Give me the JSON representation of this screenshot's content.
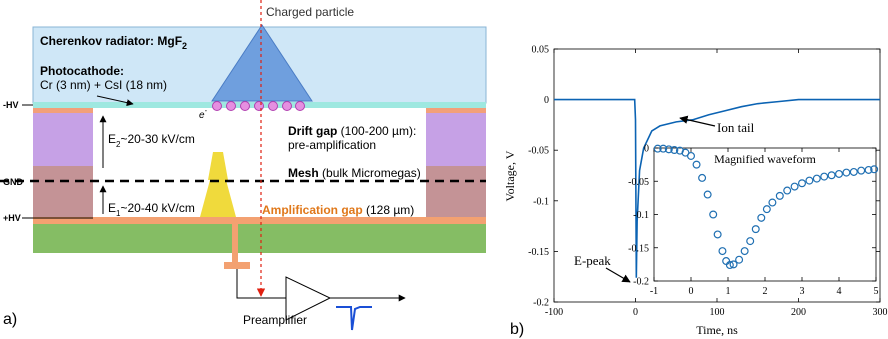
{
  "panel_a": {
    "panel_label": "a)",
    "particle_label": "Charged particle",
    "radiator_label": "Cherenkov radiator: MgF",
    "radiator_sub": "2",
    "photocathode_title": "Photocathode:",
    "photocathode_detail": "Cr (3 nm) + CsI (18 nm)",
    "electron_label": "e",
    "electron_sup": "-",
    "hv_minus": "-HV",
    "gnd": "GND",
    "hv_plus": "+HV",
    "e2_main": "E",
    "e2_sub": "2",
    "e2_rest": "~20-30 kV/cm",
    "e1_main": "E",
    "e1_sub": "1",
    "e1_rest": "~20-40 kV/cm",
    "drift_bold": "Drift gap",
    "drift_rest": " (100-200 µm):",
    "drift_line2": "pre-amplification",
    "mesh_bold": "Mesh",
    "mesh_rest": " (bulk Micromegas)",
    "amp_bold": "Amplification gap",
    "amp_rest": " (128 µm)",
    "preamp_label": "Preamplifier"
  },
  "chart_data": [
    {
      "type": "line",
      "panel_label": "b)",
      "xlabel": "Time, ns",
      "ylabel": "Voltage, V",
      "xlim": [
        -100,
        300
      ],
      "ylim": [
        -0.2,
        0.05
      ],
      "xticks": [
        -100,
        0,
        100,
        200,
        300
      ],
      "yticks": [
        0.05,
        0,
        -0.05,
        -0.1,
        -0.15,
        -0.2
      ],
      "xtick_labels": [
        "-100",
        "0",
        "100",
        "200",
        "300"
      ],
      "ytick_labels": [
        "0.05",
        "0",
        "-0.05",
        "-0.1",
        "-0.15",
        "-0.2"
      ],
      "series": [
        {
          "x": [
            -100,
            -50,
            -1,
            0,
            1,
            2,
            5,
            10,
            20,
            30,
            50,
            70,
            90,
            110,
            130,
            150,
            175,
            200,
            250,
            300
          ],
          "y": [
            0,
            0,
            0,
            -0.02,
            -0.176,
            -0.12,
            -0.07,
            -0.048,
            -0.031,
            -0.026,
            -0.022,
            -0.02,
            -0.015,
            -0.011,
            -0.007,
            -0.004,
            -0.002,
            0,
            0,
            0
          ]
        }
      ],
      "annotations": [
        {
          "text": "Ion tail",
          "x": 58,
          "y": -0.026
        },
        {
          "text": "E-peak",
          "x": 0,
          "y": -0.176
        }
      ],
      "color": "#0b63b3"
    },
    {
      "type": "scatter",
      "title": "Magnified waveform",
      "xlim": [
        -1,
        5
      ],
      "ylim": [
        -0.2,
        0
      ],
      "xticks": [
        -1,
        0,
        1,
        2,
        3,
        4,
        5
      ],
      "yticks": [
        0,
        -0.05,
        -0.1,
        -0.15,
        -0.2
      ],
      "xtick_labels": [
        "-1",
        "0",
        "1",
        "2",
        "3",
        "4",
        "5"
      ],
      "ytick_labels": [
        "0",
        "-0.05",
        "-0.1",
        "-0.15",
        "-0.2"
      ],
      "series": [
        {
          "x": [
            -0.9,
            -0.75,
            -0.6,
            -0.45,
            -0.3,
            -0.15,
            0.0,
            0.15,
            0.3,
            0.45,
            0.6,
            0.72,
            0.85,
            0.95,
            1.05,
            1.15,
            1.3,
            1.45,
            1.6,
            1.75,
            1.9,
            2.05,
            2.2,
            2.4,
            2.6,
            2.8,
            3.0,
            3.2,
            3.4,
            3.6,
            3.8,
            4.0,
            4.2,
            4.4,
            4.6,
            4.8,
            4.95
          ],
          "y": [
            -0.001,
            -0.001,
            -0.002,
            -0.003,
            -0.004,
            -0.007,
            -0.012,
            -0.025,
            -0.045,
            -0.07,
            -0.1,
            -0.13,
            -0.155,
            -0.17,
            -0.176,
            -0.175,
            -0.168,
            -0.155,
            -0.14,
            -0.122,
            -0.105,
            -0.092,
            -0.082,
            -0.072,
            -0.064,
            -0.058,
            -0.053,
            -0.049,
            -0.046,
            -0.043,
            -0.041,
            -0.039,
            -0.037,
            -0.036,
            -0.034,
            -0.033,
            -0.032
          ]
        }
      ],
      "color": "#1f6fb2"
    }
  ]
}
